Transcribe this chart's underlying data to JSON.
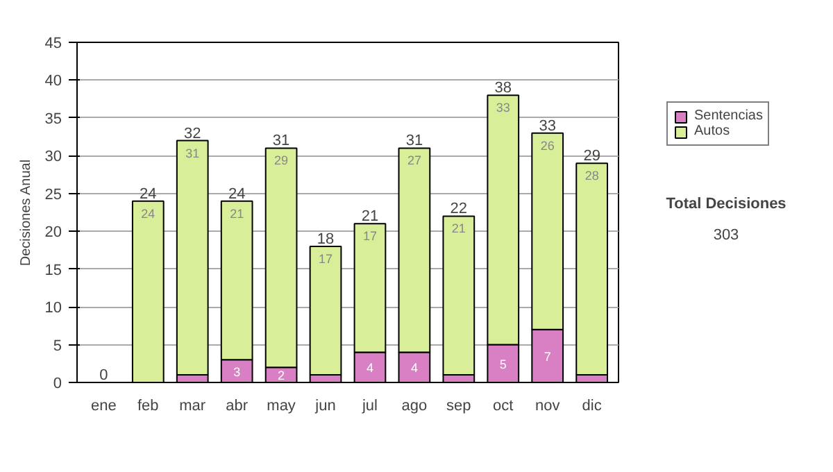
{
  "chart_data": {
    "type": "bar",
    "stacked": true,
    "ylabel": "Decisiones Anual",
    "categories": [
      "ene",
      "feb",
      "mar",
      "abr",
      "may",
      "jun",
      "jul",
      "ago",
      "sep",
      "oct",
      "nov",
      "dic"
    ],
    "series": [
      {
        "name": "Sentencias",
        "color": "#d97fc4",
        "values": [
          0,
          0,
          1,
          3,
          2,
          1,
          4,
          4,
          1,
          5,
          7,
          1
        ],
        "value_labels": [
          null,
          null,
          null,
          "3",
          "2",
          null,
          "4",
          "4",
          null,
          "5",
          "7",
          null
        ]
      },
      {
        "name": "Autos",
        "color": "#d8ee98",
        "values": [
          0,
          24,
          31,
          21,
          29,
          17,
          17,
          27,
          21,
          33,
          26,
          28
        ],
        "value_labels": [
          null,
          "24",
          "31",
          "21",
          "29",
          "17",
          "17",
          "27",
          "21",
          "33",
          "26",
          "28"
        ]
      }
    ],
    "totals": [
      "0",
      "24",
      "32",
      "24",
      "31",
      "18",
      "21",
      "31",
      "22",
      "38",
      "33",
      "29"
    ],
    "ylim": [
      0,
      45
    ],
    "yticks": [
      0,
      5,
      10,
      15,
      20,
      25,
      30,
      35,
      40,
      45
    ],
    "grid": "y",
    "legend": "right",
    "annotations": [
      "Total Decisiones",
      "303"
    ]
  }
}
